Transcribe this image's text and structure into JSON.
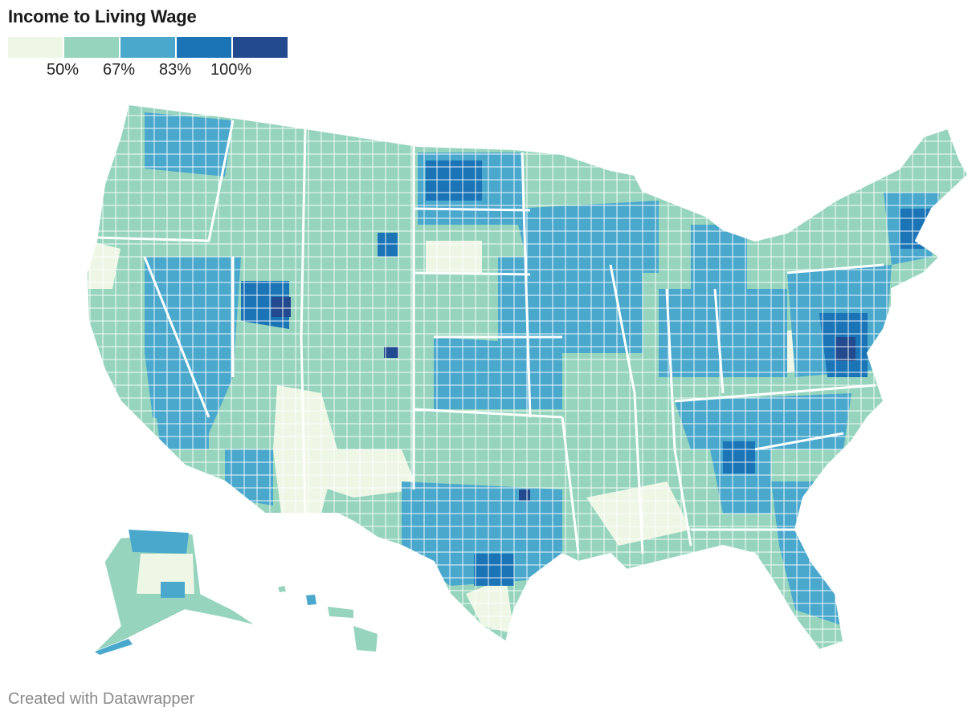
{
  "title": "Income to Living Wage",
  "legend": {
    "colors": [
      "#eef7e6",
      "#96d4bd",
      "#4aa8cd",
      "#1a74b6",
      "#234a8e"
    ],
    "labels": [
      "50%",
      "67%",
      "83%",
      "100%"
    ]
  },
  "footer": "Created with Datawrapper",
  "map": {
    "subject": "United States counties choropleth",
    "bins": [
      {
        "range": "< 50%",
        "color": "#eef7e6"
      },
      {
        "range": "50% – 67%",
        "color": "#96d4bd"
      },
      {
        "range": "67% – 83%",
        "color": "#4aa8cd"
      },
      {
        "range": "83% – 100%",
        "color": "#1a74b6"
      },
      {
        "range": "> 100%",
        "color": "#234a8e"
      }
    ],
    "border_color": "#ffffff"
  }
}
